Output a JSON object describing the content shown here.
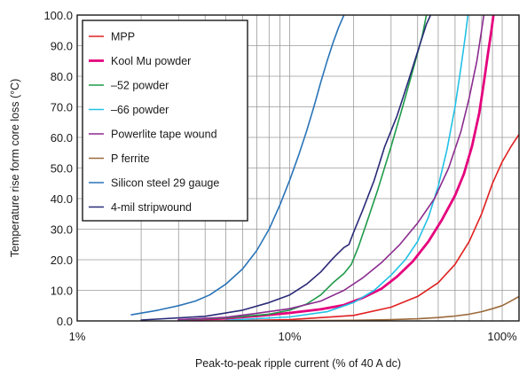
{
  "chart_data": {
    "type": "line",
    "title": "",
    "xlabel": "Peak-to-peak ripple current (% of 40 A dc)",
    "ylabel": "Temperature rise form core loss (°C)",
    "x_scale": "log",
    "xlim": [
      1,
      120
    ],
    "ylim": [
      0,
      100
    ],
    "x_tick_values": [
      1,
      10,
      100
    ],
    "x_tick_labels": [
      "1%",
      "10%",
      "100%"
    ],
    "y_ticks": [
      "0.0",
      "10.0",
      "20.0",
      "30.0",
      "40.0",
      "50.0",
      "60.0",
      "70.0",
      "80.0",
      "90.0",
      "100.0"
    ],
    "grid": true,
    "legend_position": "top-left",
    "series": [
      {
        "name": "MPP",
        "color": "#e02020",
        "width": 1.6,
        "points": [
          [
            5,
            0.0
          ],
          [
            10,
            0.4
          ],
          [
            20,
            1.8
          ],
          [
            30,
            4.5
          ],
          [
            40,
            8.0
          ],
          [
            50,
            12.5
          ],
          [
            60,
            18.5
          ],
          [
            70,
            26.0
          ],
          [
            80,
            35.0
          ],
          [
            90,
            45.0
          ],
          [
            100,
            52.0
          ],
          [
            110,
            57.0
          ],
          [
            120,
            61.0
          ]
        ]
      },
      {
        "name": "Kool Mu powder",
        "color": "#e5007d",
        "width": 2.8,
        "points": [
          [
            3,
            0.2
          ],
          [
            5,
            0.8
          ],
          [
            7,
            1.6
          ],
          [
            10,
            2.6
          ],
          [
            14,
            3.8
          ],
          [
            18,
            5.2
          ],
          [
            22,
            7.5
          ],
          [
            27,
            10.5
          ],
          [
            32,
            14.5
          ],
          [
            38,
            19.5
          ],
          [
            45,
            26.0
          ],
          [
            52,
            33.0
          ],
          [
            60,
            41.0
          ],
          [
            66,
            48.0
          ],
          [
            72,
            57.0
          ],
          [
            78,
            68.0
          ],
          [
            82,
            78.0
          ],
          [
            86,
            88.0
          ],
          [
            89,
            95.0
          ],
          [
            91,
            100.0
          ]
        ]
      },
      {
        "name": "–52 powder",
        "color": "#1f9a4a",
        "width": 1.6,
        "points": [
          [
            3,
            0.3
          ],
          [
            5,
            1.0
          ],
          [
            8,
            2.2
          ],
          [
            10,
            3.5
          ],
          [
            12,
            5.5
          ],
          [
            14,
            8.5
          ],
          [
            16,
            12.5
          ],
          [
            18,
            15.5
          ],
          [
            19.5,
            18.5
          ],
          [
            21,
            24.0
          ],
          [
            23,
            32.0
          ],
          [
            26,
            43.0
          ],
          [
            30,
            57.0
          ],
          [
            34,
            70.0
          ],
          [
            38,
            82.0
          ],
          [
            42,
            93.0
          ],
          [
            44,
            100.0
          ]
        ]
      },
      {
        "name": "–66 powder",
        "color": "#22c1e6",
        "width": 1.6,
        "points": [
          [
            5,
            0.2
          ],
          [
            10,
            1.3
          ],
          [
            15,
            3.0
          ],
          [
            20,
            6.0
          ],
          [
            25,
            10.0
          ],
          [
            30,
            15.0
          ],
          [
            35,
            20.0
          ],
          [
            40,
            26.0
          ],
          [
            45,
            34.0
          ],
          [
            50,
            44.0
          ],
          [
            55,
            56.0
          ],
          [
            60,
            70.0
          ],
          [
            64,
            83.0
          ],
          [
            67,
            93.0
          ],
          [
            69,
            100.0
          ]
        ]
      },
      {
        "name": "Powerlite tape wound",
        "color": "#8b2c8f",
        "width": 1.6,
        "points": [
          [
            3,
            0.4
          ],
          [
            5,
            1.2
          ],
          [
            7,
            2.5
          ],
          [
            10,
            4.0
          ],
          [
            14,
            6.5
          ],
          [
            18,
            10.0
          ],
          [
            22,
            14.0
          ],
          [
            27,
            19.0
          ],
          [
            33,
            25.0
          ],
          [
            40,
            32.0
          ],
          [
            48,
            40.0
          ],
          [
            56,
            50.0
          ],
          [
            64,
            62.0
          ],
          [
            70,
            73.0
          ],
          [
            76,
            85.0
          ],
          [
            80,
            95.0
          ],
          [
            82,
            100.0
          ]
        ]
      },
      {
        "name": "P ferrite",
        "color": "#9a6a3a",
        "width": 1.6,
        "points": [
          [
            4,
            0.0
          ],
          [
            10,
            0.05
          ],
          [
            20,
            0.2
          ],
          [
            30,
            0.4
          ],
          [
            40,
            0.7
          ],
          [
            50,
            1.1
          ],
          [
            60,
            1.6
          ],
          [
            70,
            2.2
          ],
          [
            80,
            3.0
          ],
          [
            90,
            4.0
          ],
          [
            100,
            5.0
          ],
          [
            110,
            6.5
          ],
          [
            120,
            8.0
          ]
        ]
      },
      {
        "name": "Silicon steel 29 gauge",
        "color": "#2a74b8",
        "width": 1.6,
        "points": [
          [
            1.8,
            2.0
          ],
          [
            2.4,
            3.5
          ],
          [
            3.0,
            5.0
          ],
          [
            3.6,
            6.5
          ],
          [
            4.2,
            8.5
          ],
          [
            5.0,
            12.0
          ],
          [
            6.0,
            17.0
          ],
          [
            7.0,
            23.0
          ],
          [
            8.0,
            30.0
          ],
          [
            9.0,
            38.0
          ],
          [
            10.0,
            46.0
          ],
          [
            11.0,
            54.0
          ],
          [
            12.0,
            62.0
          ],
          [
            13.0,
            70.0
          ],
          [
            14.0,
            78.0
          ],
          [
            15.0,
            85.0
          ],
          [
            16.0,
            91.0
          ],
          [
            17.0,
            96.0
          ],
          [
            18.0,
            100.0
          ]
        ]
      },
      {
        "name": "4-mil stripwound",
        "color": "#2a2a78",
        "width": 1.6,
        "points": [
          [
            2,
            0.3
          ],
          [
            4,
            1.5
          ],
          [
            6,
            3.5
          ],
          [
            8,
            6.0
          ],
          [
            10,
            8.5
          ],
          [
            12,
            12.0
          ],
          [
            14,
            16.0
          ],
          [
            16,
            20.5
          ],
          [
            18,
            24.0
          ],
          [
            19,
            25.0
          ],
          [
            20,
            29.0
          ],
          [
            22,
            36.0
          ],
          [
            25,
            46.0
          ],
          [
            28,
            57.0
          ],
          [
            32,
            67.0
          ],
          [
            36,
            78.0
          ],
          [
            40,
            88.0
          ],
          [
            44,
            97.0
          ],
          [
            46,
            100.0
          ]
        ]
      }
    ]
  }
}
